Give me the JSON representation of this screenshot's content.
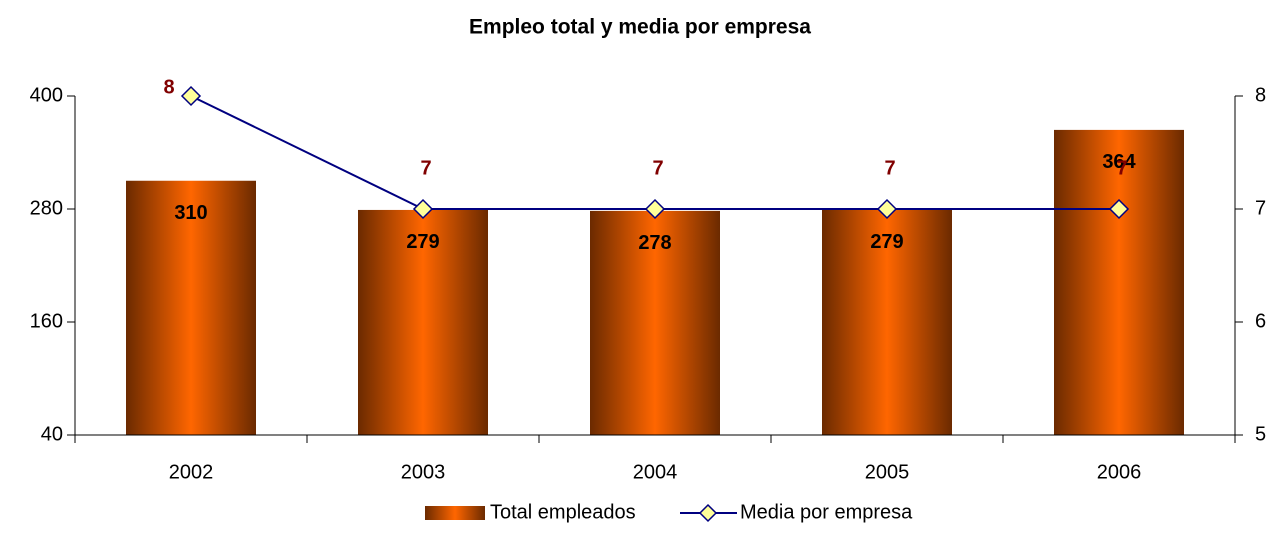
{
  "chart_data": {
    "type": "bar_line",
    "title": "Empleo total y media por empresa",
    "categories": [
      "2002",
      "2003",
      "2004",
      "2005",
      "2006"
    ],
    "series": [
      {
        "name": "Total empleados",
        "color": "#ff6600",
        "values": [
          310,
          279,
          278,
          279,
          364
        ]
      },
      {
        "name": "Media por empresa",
        "color": "#000080",
        "marker_color": "#ffff99",
        "axis": "y2",
        "values": [
          8,
          7,
          7,
          7,
          7
        ]
      }
    ],
    "ylim": [
      40,
      400
    ],
    "yticks": [
      40,
      160,
      280,
      400
    ],
    "y2lim": [
      5,
      8
    ],
    "y2ticks": [
      5,
      6,
      7,
      8
    ],
    "legend": "bottom"
  }
}
